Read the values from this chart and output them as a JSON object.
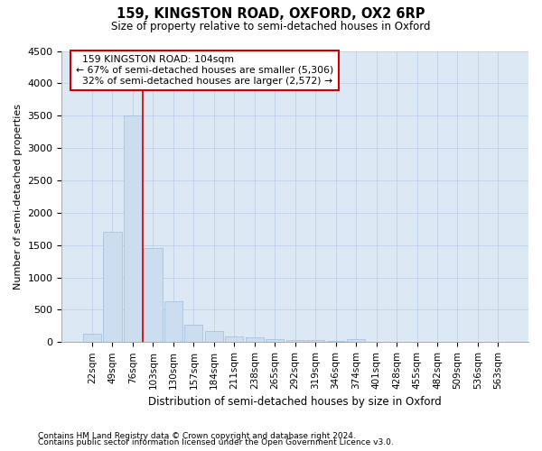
{
  "title": "159, KINGSTON ROAD, OXFORD, OX2 6RP",
  "subtitle": "Size of property relative to semi-detached houses in Oxford",
  "xlabel": "Distribution of semi-detached houses by size in Oxford",
  "ylabel": "Number of semi-detached properties",
  "bar_color": "#ccddf0",
  "bar_edge_color": "#a0bcd8",
  "background_color": "#ffffff",
  "plot_bg_color": "#dce9f5",
  "grid_color": "#b8cce4",
  "annotation_box_color": "#cc0000",
  "property_line_color": "#cc0000",
  "categories": [
    "22sqm",
    "49sqm",
    "76sqm",
    "103sqm",
    "130sqm",
    "157sqm",
    "184sqm",
    "211sqm",
    "238sqm",
    "265sqm",
    "292sqm",
    "319sqm",
    "346sqm",
    "374sqm",
    "401sqm",
    "428sqm",
    "455sqm",
    "482sqm",
    "509sqm",
    "536sqm",
    "563sqm"
  ],
  "values": [
    130,
    1700,
    3500,
    1450,
    625,
    275,
    165,
    90,
    75,
    50,
    35,
    30,
    25,
    40,
    5,
    5,
    3,
    2,
    2,
    2,
    2
  ],
  "ylim": [
    0,
    4500
  ],
  "yticks": [
    0,
    500,
    1000,
    1500,
    2000,
    2500,
    3000,
    3500,
    4000,
    4500
  ],
  "property_label": "159 KINGSTON ROAD: 104sqm",
  "smaller_pct": "67%",
  "smaller_n": "5,306",
  "larger_pct": "32%",
  "larger_n": "2,572",
  "property_line_x": 2.5,
  "footnote1": "Contains HM Land Registry data © Crown copyright and database right 2024.",
  "footnote2": "Contains public sector information licensed under the Open Government Licence v3.0.",
  "figsize": [
    6.0,
    5.0
  ],
  "dpi": 100
}
